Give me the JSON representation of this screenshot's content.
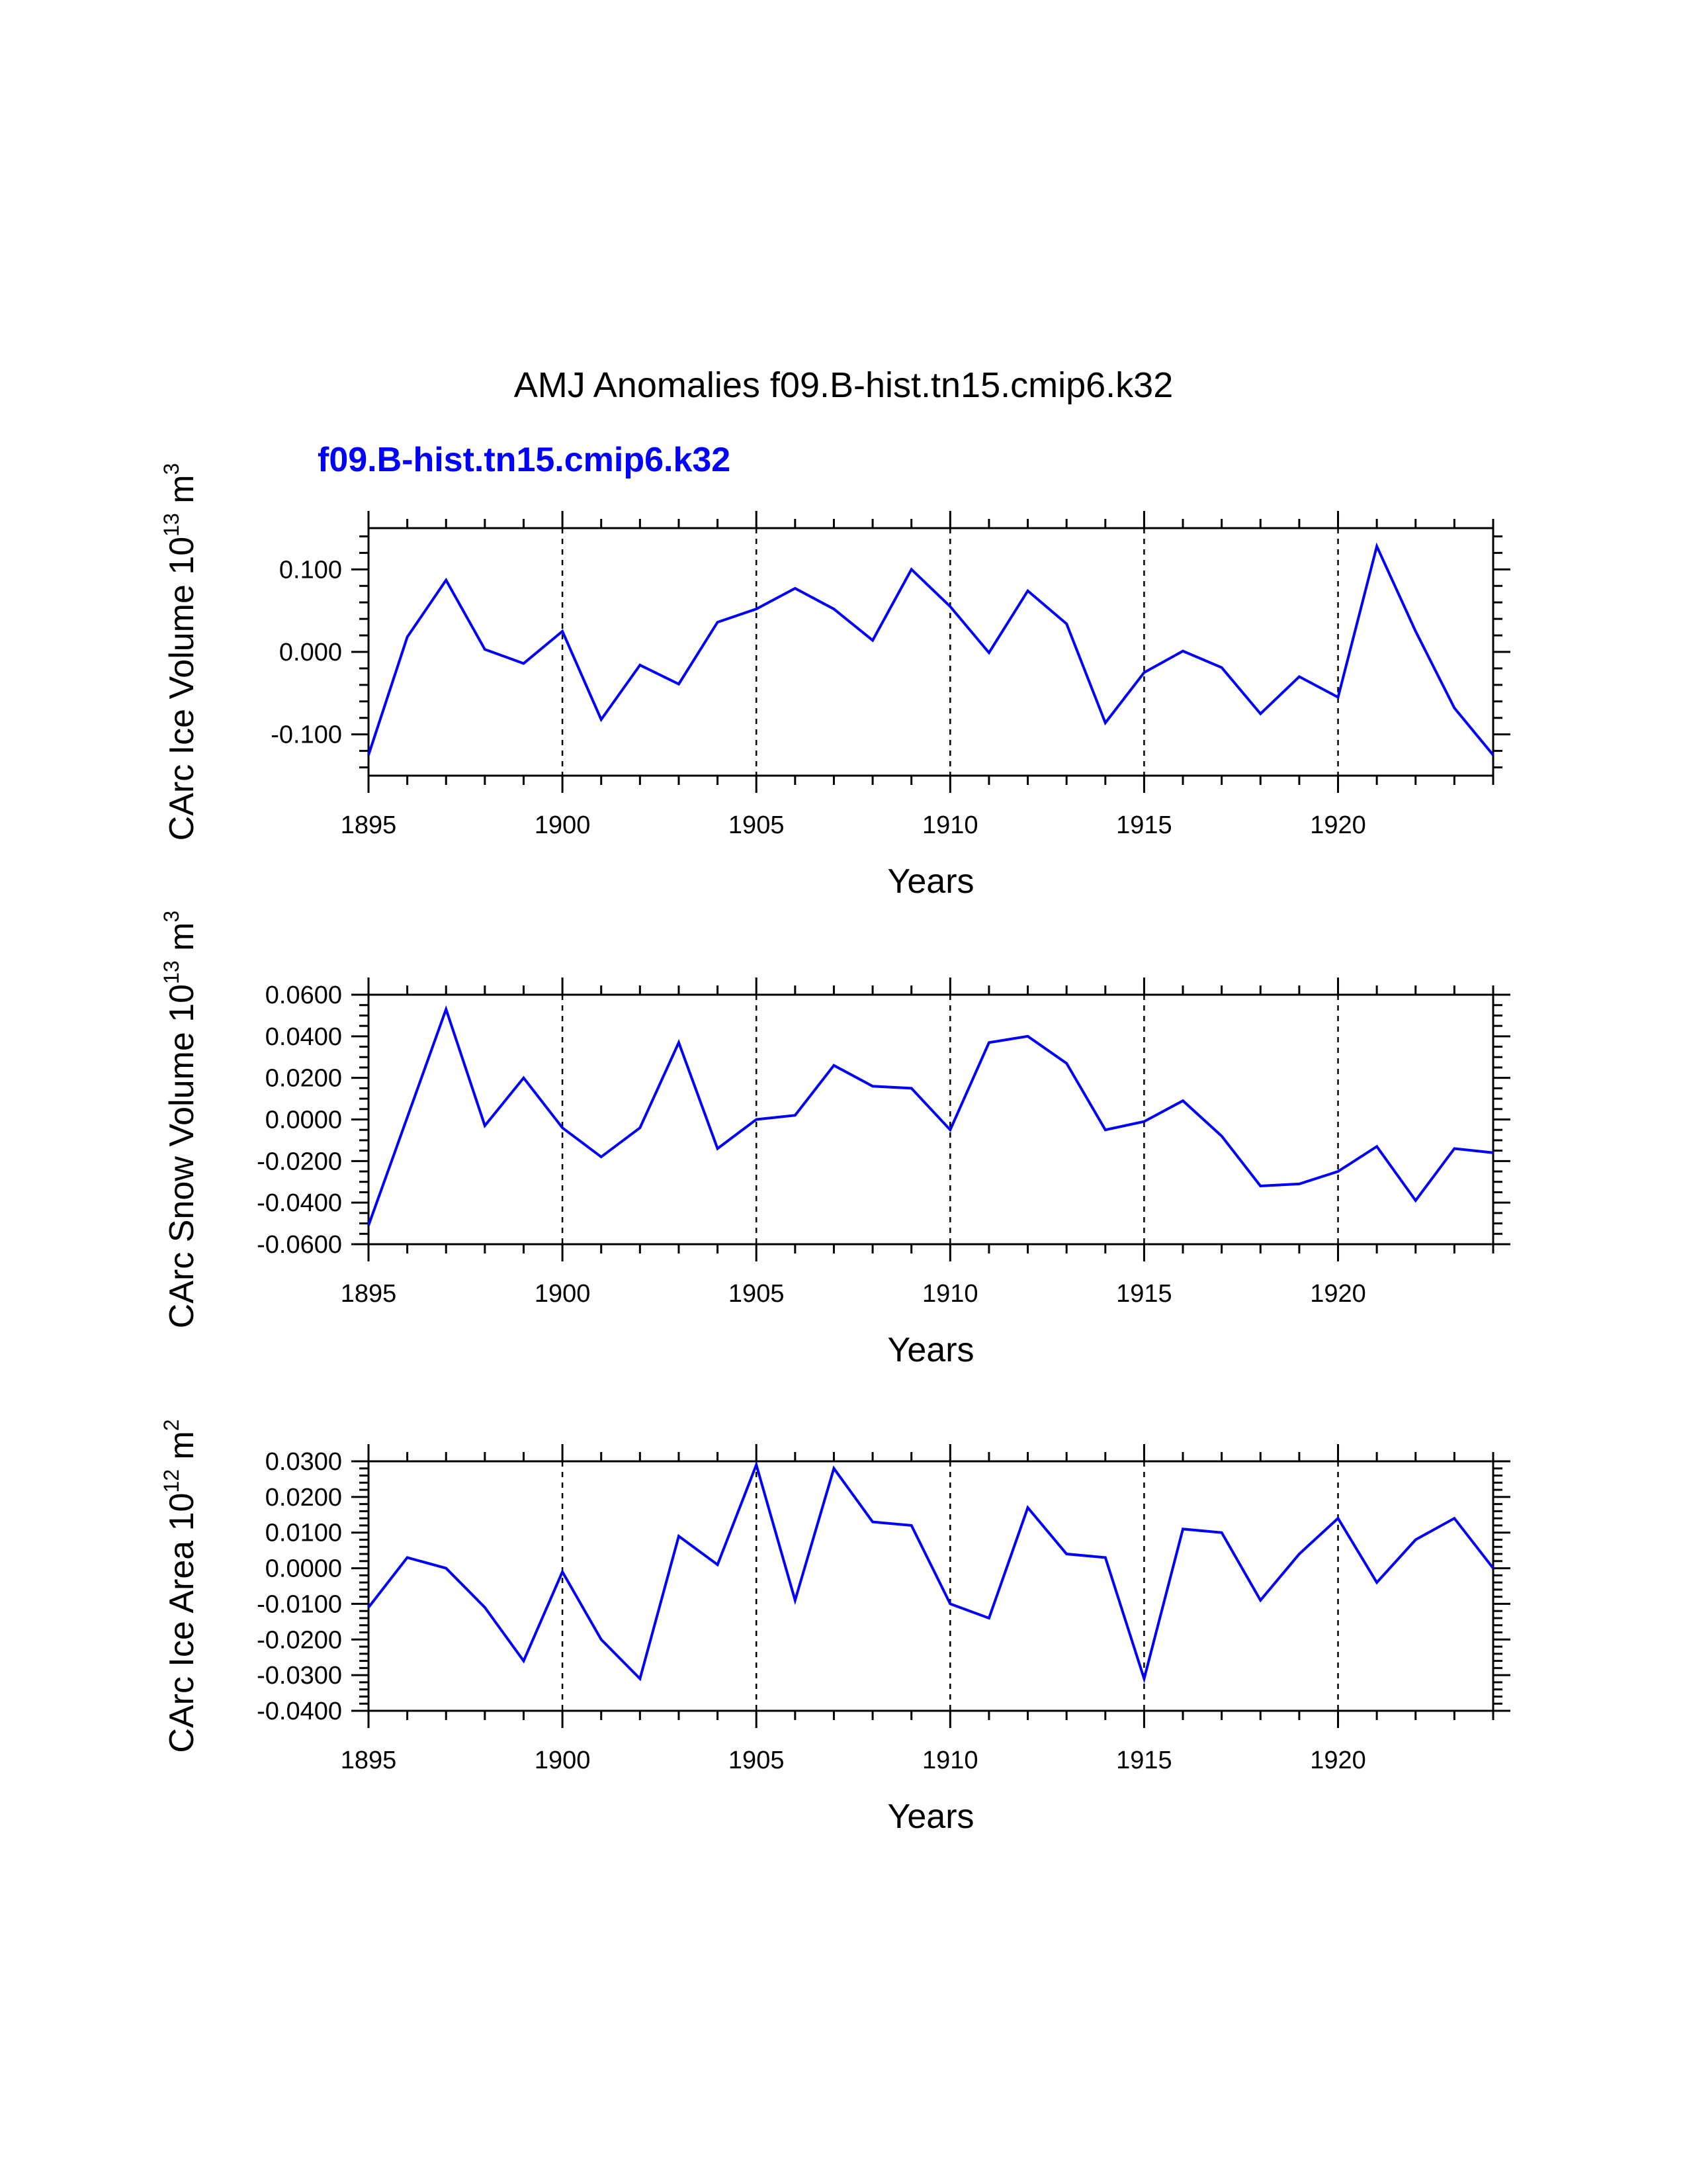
{
  "title": "AMJ Anomalies f09.B-hist.tn15.cmip6.k32",
  "run_label": "f09.B-hist.tn15.cmip6.k32",
  "colors": {
    "series": "#0000ff",
    "run_label": "#0000ff",
    "axes": "#000000"
  },
  "chart_data": [
    {
      "type": "line",
      "ylabel": "CArc Ice Volume 10",
      "ylabel_exp": "13",
      "ylabel_unit": " m",
      "ylabel_unit_exp": "3",
      "xlabel": "Years",
      "xlim": [
        1895,
        1924
      ],
      "ylim": [
        -0.15,
        0.15
      ],
      "yticks": [
        -0.1,
        0.0,
        0.1
      ],
      "yticklabels": [
        "-0.100",
        "0.000",
        "0.100"
      ],
      "yminor": [
        -0.14,
        -0.12,
        -0.08,
        -0.06,
        -0.04,
        -0.02,
        0.02,
        0.04,
        0.06,
        0.08,
        0.12,
        0.14
      ],
      "xticks": [
        1895,
        1900,
        1905,
        1910,
        1915,
        1920
      ],
      "xticklabels": [
        "1895",
        "1900",
        "1905",
        "1910",
        "1915",
        "1920"
      ],
      "grid_x": [
        1900,
        1905,
        1910,
        1915,
        1920
      ],
      "series": [
        {
          "name": "f09.B-hist.tn15.cmip6.k32",
          "x": [
            1895,
            1896,
            1897,
            1898,
            1899,
            1900,
            1901,
            1902,
            1903,
            1904,
            1905,
            1906,
            1907,
            1908,
            1909,
            1910,
            1911,
            1912,
            1913,
            1914,
            1915,
            1916,
            1917,
            1918,
            1919,
            1920,
            1921,
            1922,
            1923,
            1924
          ],
          "values": [
            -0.125,
            0.018,
            0.087,
            0.003,
            -0.014,
            0.025,
            -0.082,
            -0.016,
            -0.039,
            0.036,
            0.052,
            0.077,
            0.052,
            0.014,
            0.1,
            0.055,
            -0.001,
            0.074,
            0.034,
            -0.086,
            -0.025,
            0.001,
            -0.019,
            -0.075,
            -0.03,
            -0.055,
            0.128,
            0.025,
            -0.068,
            -0.125
          ]
        }
      ]
    },
    {
      "type": "line",
      "ylabel": "CArc Snow Volume 10",
      "ylabel_exp": "13",
      "ylabel_unit": " m",
      "ylabel_unit_exp": "3",
      "xlabel": "Years",
      "xlim": [
        1895,
        1924
      ],
      "ylim": [
        -0.06,
        0.06
      ],
      "yticks": [
        -0.06,
        -0.04,
        -0.02,
        0.0,
        0.02,
        0.04,
        0.06
      ],
      "yticklabels": [
        "-0.0600",
        "-0.0400",
        "-0.0200",
        "0.0000",
        "0.0200",
        "0.0400",
        "0.0600"
      ],
      "yminor": [
        -0.055,
        -0.05,
        -0.045,
        -0.035,
        -0.03,
        -0.025,
        -0.015,
        -0.01,
        -0.005,
        0.005,
        0.01,
        0.015,
        0.025,
        0.03,
        0.035,
        0.045,
        0.05,
        0.055
      ],
      "xticks": [
        1895,
        1900,
        1905,
        1910,
        1915,
        1920
      ],
      "xticklabels": [
        "1895",
        "1900",
        "1905",
        "1910",
        "1915",
        "1920"
      ],
      "grid_x": [
        1900,
        1905,
        1910,
        1915,
        1920
      ],
      "series": [
        {
          "name": "f09.B-hist.tn15.cmip6.k32",
          "x": [
            1895,
            1896,
            1897,
            1898,
            1899,
            1900,
            1901,
            1902,
            1903,
            1904,
            1905,
            1906,
            1907,
            1908,
            1909,
            1910,
            1911,
            1912,
            1913,
            1914,
            1915,
            1916,
            1917,
            1918,
            1919,
            1920,
            1921,
            1922,
            1923,
            1924
          ],
          "values": [
            -0.051,
            0.001,
            0.053,
            -0.003,
            0.02,
            -0.004,
            -0.018,
            -0.004,
            0.037,
            -0.014,
            0.0,
            0.002,
            0.026,
            0.016,
            0.015,
            -0.005,
            0.037,
            0.04,
            0.027,
            -0.005,
            -0.001,
            0.009,
            -0.008,
            -0.032,
            -0.031,
            -0.025,
            -0.013,
            -0.039,
            -0.014,
            -0.016
          ]
        }
      ]
    },
    {
      "type": "line",
      "ylabel": "CArc Ice Area 10",
      "ylabel_exp": "12",
      "ylabel_unit": " m",
      "ylabel_unit_exp": "2",
      "xlabel": "Years",
      "xlim": [
        1895,
        1924
      ],
      "ylim": [
        -0.04,
        0.03
      ],
      "yticks": [
        -0.04,
        -0.03,
        -0.02,
        -0.01,
        0.0,
        0.01,
        0.02,
        0.03
      ],
      "yticklabels": [
        "-0.0400",
        "-0.0300",
        "-0.0200",
        "-0.0100",
        "0.0000",
        "0.0100",
        "0.0200",
        "0.0300"
      ],
      "yminor": [
        -0.038,
        -0.036,
        -0.034,
        -0.032,
        -0.028,
        -0.026,
        -0.024,
        -0.022,
        -0.018,
        -0.016,
        -0.014,
        -0.012,
        -0.008,
        -0.006,
        -0.004,
        -0.002,
        0.002,
        0.004,
        0.006,
        0.008,
        0.012,
        0.014,
        0.016,
        0.018,
        0.022,
        0.024,
        0.026,
        0.028
      ],
      "xticks": [
        1895,
        1900,
        1905,
        1910,
        1915,
        1920
      ],
      "xticklabels": [
        "1895",
        "1900",
        "1905",
        "1910",
        "1915",
        "1920"
      ],
      "grid_x": [
        1900,
        1905,
        1910,
        1915,
        1920
      ],
      "series": [
        {
          "name": "f09.B-hist.tn15.cmip6.k32",
          "x": [
            1895,
            1896,
            1897,
            1898,
            1899,
            1900,
            1901,
            1902,
            1903,
            1904,
            1905,
            1906,
            1907,
            1908,
            1909,
            1910,
            1911,
            1912,
            1913,
            1914,
            1915,
            1916,
            1917,
            1918,
            1919,
            1920,
            1921,
            1922,
            1923,
            1924
          ],
          "values": [
            -0.011,
            0.003,
            0.0,
            -0.011,
            -0.026,
            -0.001,
            -0.02,
            -0.031,
            0.009,
            0.001,
            0.029,
            -0.009,
            0.028,
            0.013,
            0.012,
            -0.01,
            -0.014,
            0.017,
            0.004,
            0.003,
            -0.031,
            0.011,
            0.01,
            -0.009,
            0.004,
            0.014,
            -0.004,
            0.008,
            0.014,
            0.0
          ]
        }
      ]
    }
  ]
}
